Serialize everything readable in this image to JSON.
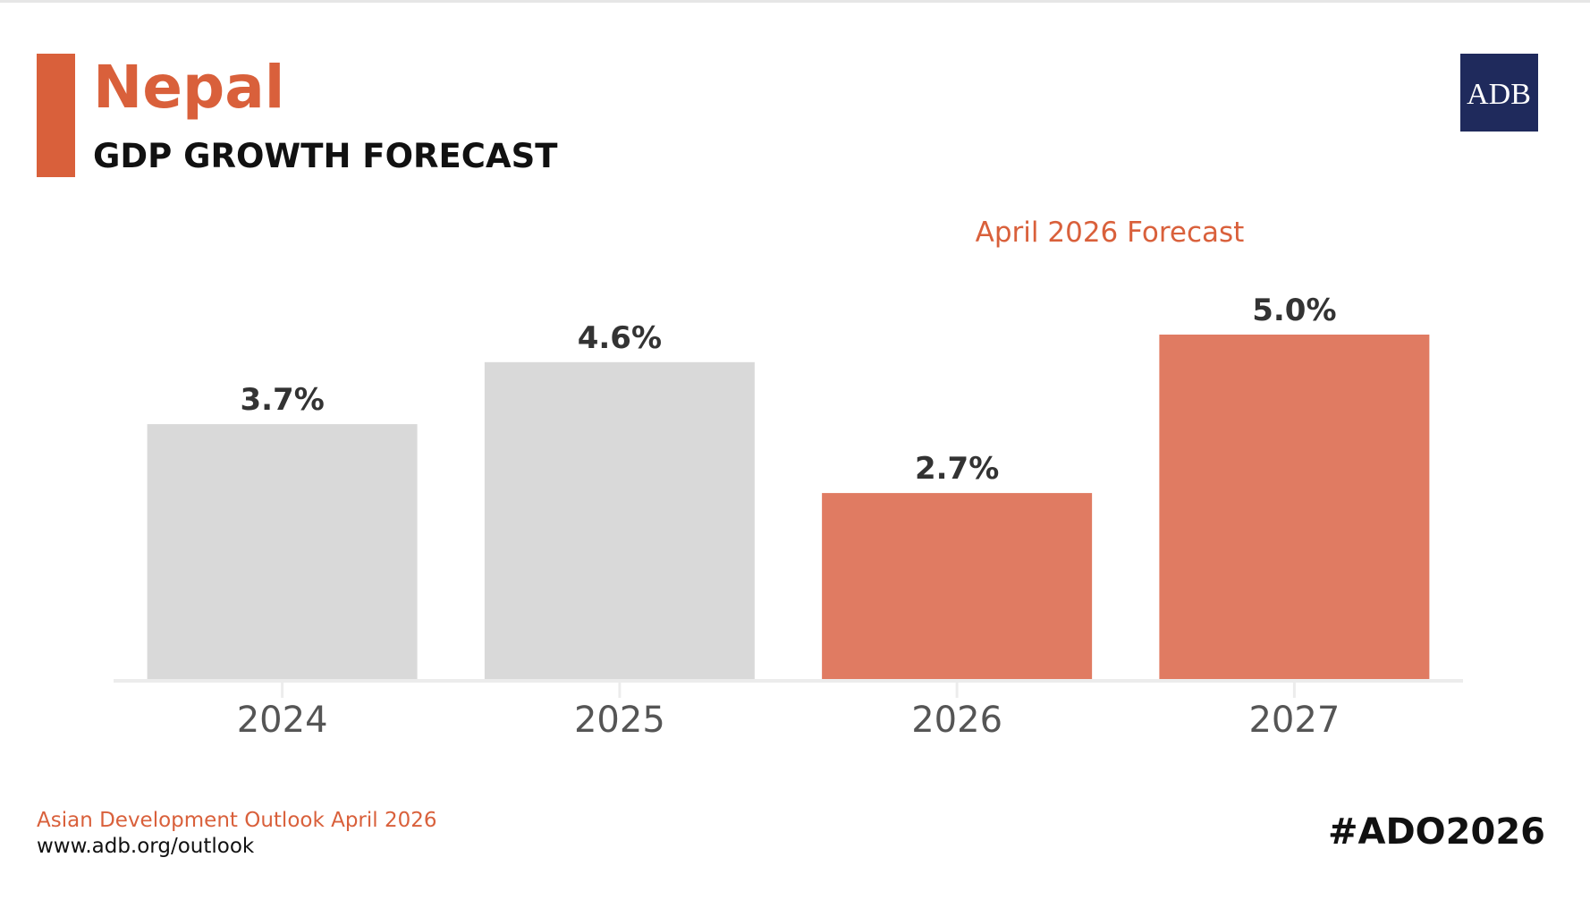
{
  "chart_data": {
    "type": "bar",
    "title": "Nepal",
    "subtitle": "GDP GROWTH FORECAST",
    "annotation": "April 2026 Forecast",
    "logo": "ADB",
    "source": "Asian Development Outlook April 2026",
    "url": "www.adb.org/outlook",
    "hashtag": "#ADO2026",
    "categories": [
      "2024",
      "2025",
      "2026",
      "2027"
    ],
    "values": [
      3.7,
      4.6,
      2.7,
      5.0
    ],
    "value_labels": [
      "3.7%",
      "4.6%",
      "2.7%",
      "5.0%"
    ],
    "colors": [
      "#d9d9d9",
      "#d9d9d9",
      "#e07b62",
      "#e07b62"
    ],
    "ylim": [
      0,
      5
    ]
  }
}
